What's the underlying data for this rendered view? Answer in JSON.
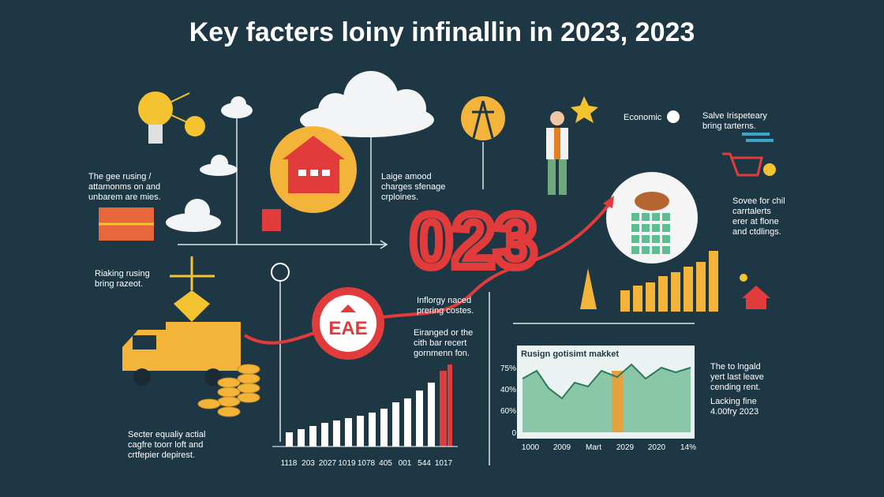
{
  "title": "Key facters loiny infinallin in 2023, 2023",
  "big_number": "023",
  "sign_text": "EAE",
  "blocks": [
    {
      "lines": [
        "The gee rusing /",
        "attamonms on and",
        "unbarem are mies."
      ]
    },
    {
      "lines": [
        "Laige amood",
        "charges sfenage",
        "crploines."
      ]
    },
    {
      "lines": [
        "Economic"
      ]
    },
    {
      "lines": [
        "Salve Irispeteary",
        "bring tarterns."
      ]
    },
    {
      "lines": [
        "Sovee for chil",
        "carrtalerts",
        "erer at flone",
        "and ctdlings."
      ]
    },
    {
      "lines": [
        "Riaking rusing",
        "bring razeot."
      ]
    },
    {
      "lines": [
        "Inflorgy naced",
        "prering costes."
      ]
    },
    {
      "lines": [
        "Eiranged or the",
        "cith bar recert",
        "gornmenn fon."
      ]
    },
    {
      "lines": [
        "Secter equaliy actial",
        "cagfre toorr loft and",
        "crtfepier depirest."
      ]
    },
    {
      "lines": [
        "The to lngald",
        "yert last leave",
        "cending rent."
      ]
    },
    {
      "lines": [
        "Lacking fine",
        "4.00fry 2023"
      ]
    }
  ],
  "bottom_labels": [
    "1118",
    "203",
    "2027",
    "1019",
    "1078",
    "405",
    "001",
    "544",
    "1017"
  ],
  "inset": {
    "title": "Rusign gotisimt makket",
    "y_labels": [
      "75%",
      "40%",
      "60%",
      "0"
    ],
    "x_labels": [
      "1000",
      "2009",
      "Mart",
      "2029",
      "2020",
      "14%"
    ]
  }
}
